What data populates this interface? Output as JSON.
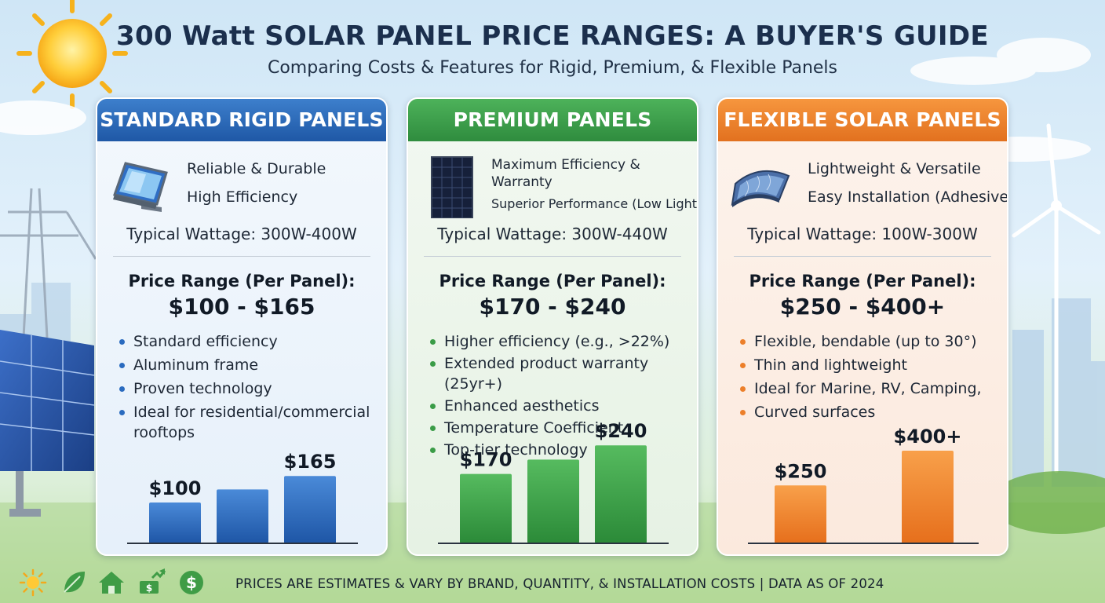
{
  "header": {
    "title": "300 Watt SOLAR PANEL PRICE RANGES: A BUYER'S GUIDE",
    "subtitle": "Comparing Costs & Features for Rigid, Premium, & Flexible Panels"
  },
  "colors": {
    "blue": "#2a6bbf",
    "green": "#3a9c47",
    "orange": "#ec7f2a"
  },
  "cards": [
    {
      "heading": "STANDARD RIGID PANELS",
      "icon": "framed-panel-icon",
      "features": [
        "Reliable & Durable",
        "High Efficiency"
      ],
      "wattage": "Typical Wattage: 300W-400W",
      "price_label": "Price Range (Per Panel):",
      "price_range": "$100 - $165",
      "bullets": [
        "Standard efficiency",
        "Aluminum frame",
        "Proven technology",
        "Ideal for residential/commercial",
        "rooftops"
      ],
      "chart_labels": [
        "$100",
        "$165"
      ]
    },
    {
      "heading": "PREMIUM PANELS",
      "icon": "monocrystalline-panel-icon",
      "features": [
        "Maximum Efficiency &",
        "Warranty",
        "Superior Performance (Low Light)"
      ],
      "wattage": "Typical Wattage: 300W-440W",
      "price_label": "Price Range (Per Panel):",
      "price_range": "$170 - $240",
      "bullets": [
        "Higher efficiency (e.g., >22%)",
        "Extended product warranty (25yr+)",
        "Enhanced aesthetics",
        "Temperature Coefficient",
        "Top-tier technology"
      ],
      "chart_labels": [
        "$170",
        "$240"
      ]
    },
    {
      "heading": "FLEXIBLE SOLAR PANELS",
      "icon": "flexible-panel-icon",
      "features": [
        "Lightweight & Versatile",
        "Easy Installation (Adhesive)"
      ],
      "wattage": "Typical Wattage: 100W-300W",
      "price_label": "Price Range (Per Panel):",
      "price_range": "$250 - $400+",
      "bullets": [
        "Flexible, bendable (up to 30°)",
        "Thin and lightweight",
        "Ideal for Marine, RV, Camping,",
        "Curved surfaces"
      ],
      "chart_labels": [
        "$250",
        "$400+"
      ]
    }
  ],
  "chart_data": [
    {
      "type": "bar",
      "values": [
        100,
        132,
        165
      ],
      "ylim": [
        0,
        400
      ]
    },
    {
      "type": "bar",
      "values": [
        170,
        205,
        240
      ],
      "ylim": [
        0,
        400
      ]
    },
    {
      "type": "bar",
      "values": [
        250,
        400
      ],
      "ylim": [
        0,
        400
      ]
    }
  ],
  "footer": {
    "text": "PRICES ARE ESTIMATES & VARY BY BRAND, QUANTITY, & INSTALLATION COSTS | DATA AS OF 2024",
    "icons": [
      "sun-icon",
      "leaf-icon",
      "house-icon",
      "money-growth-icon",
      "dollar-coin-icon"
    ]
  }
}
